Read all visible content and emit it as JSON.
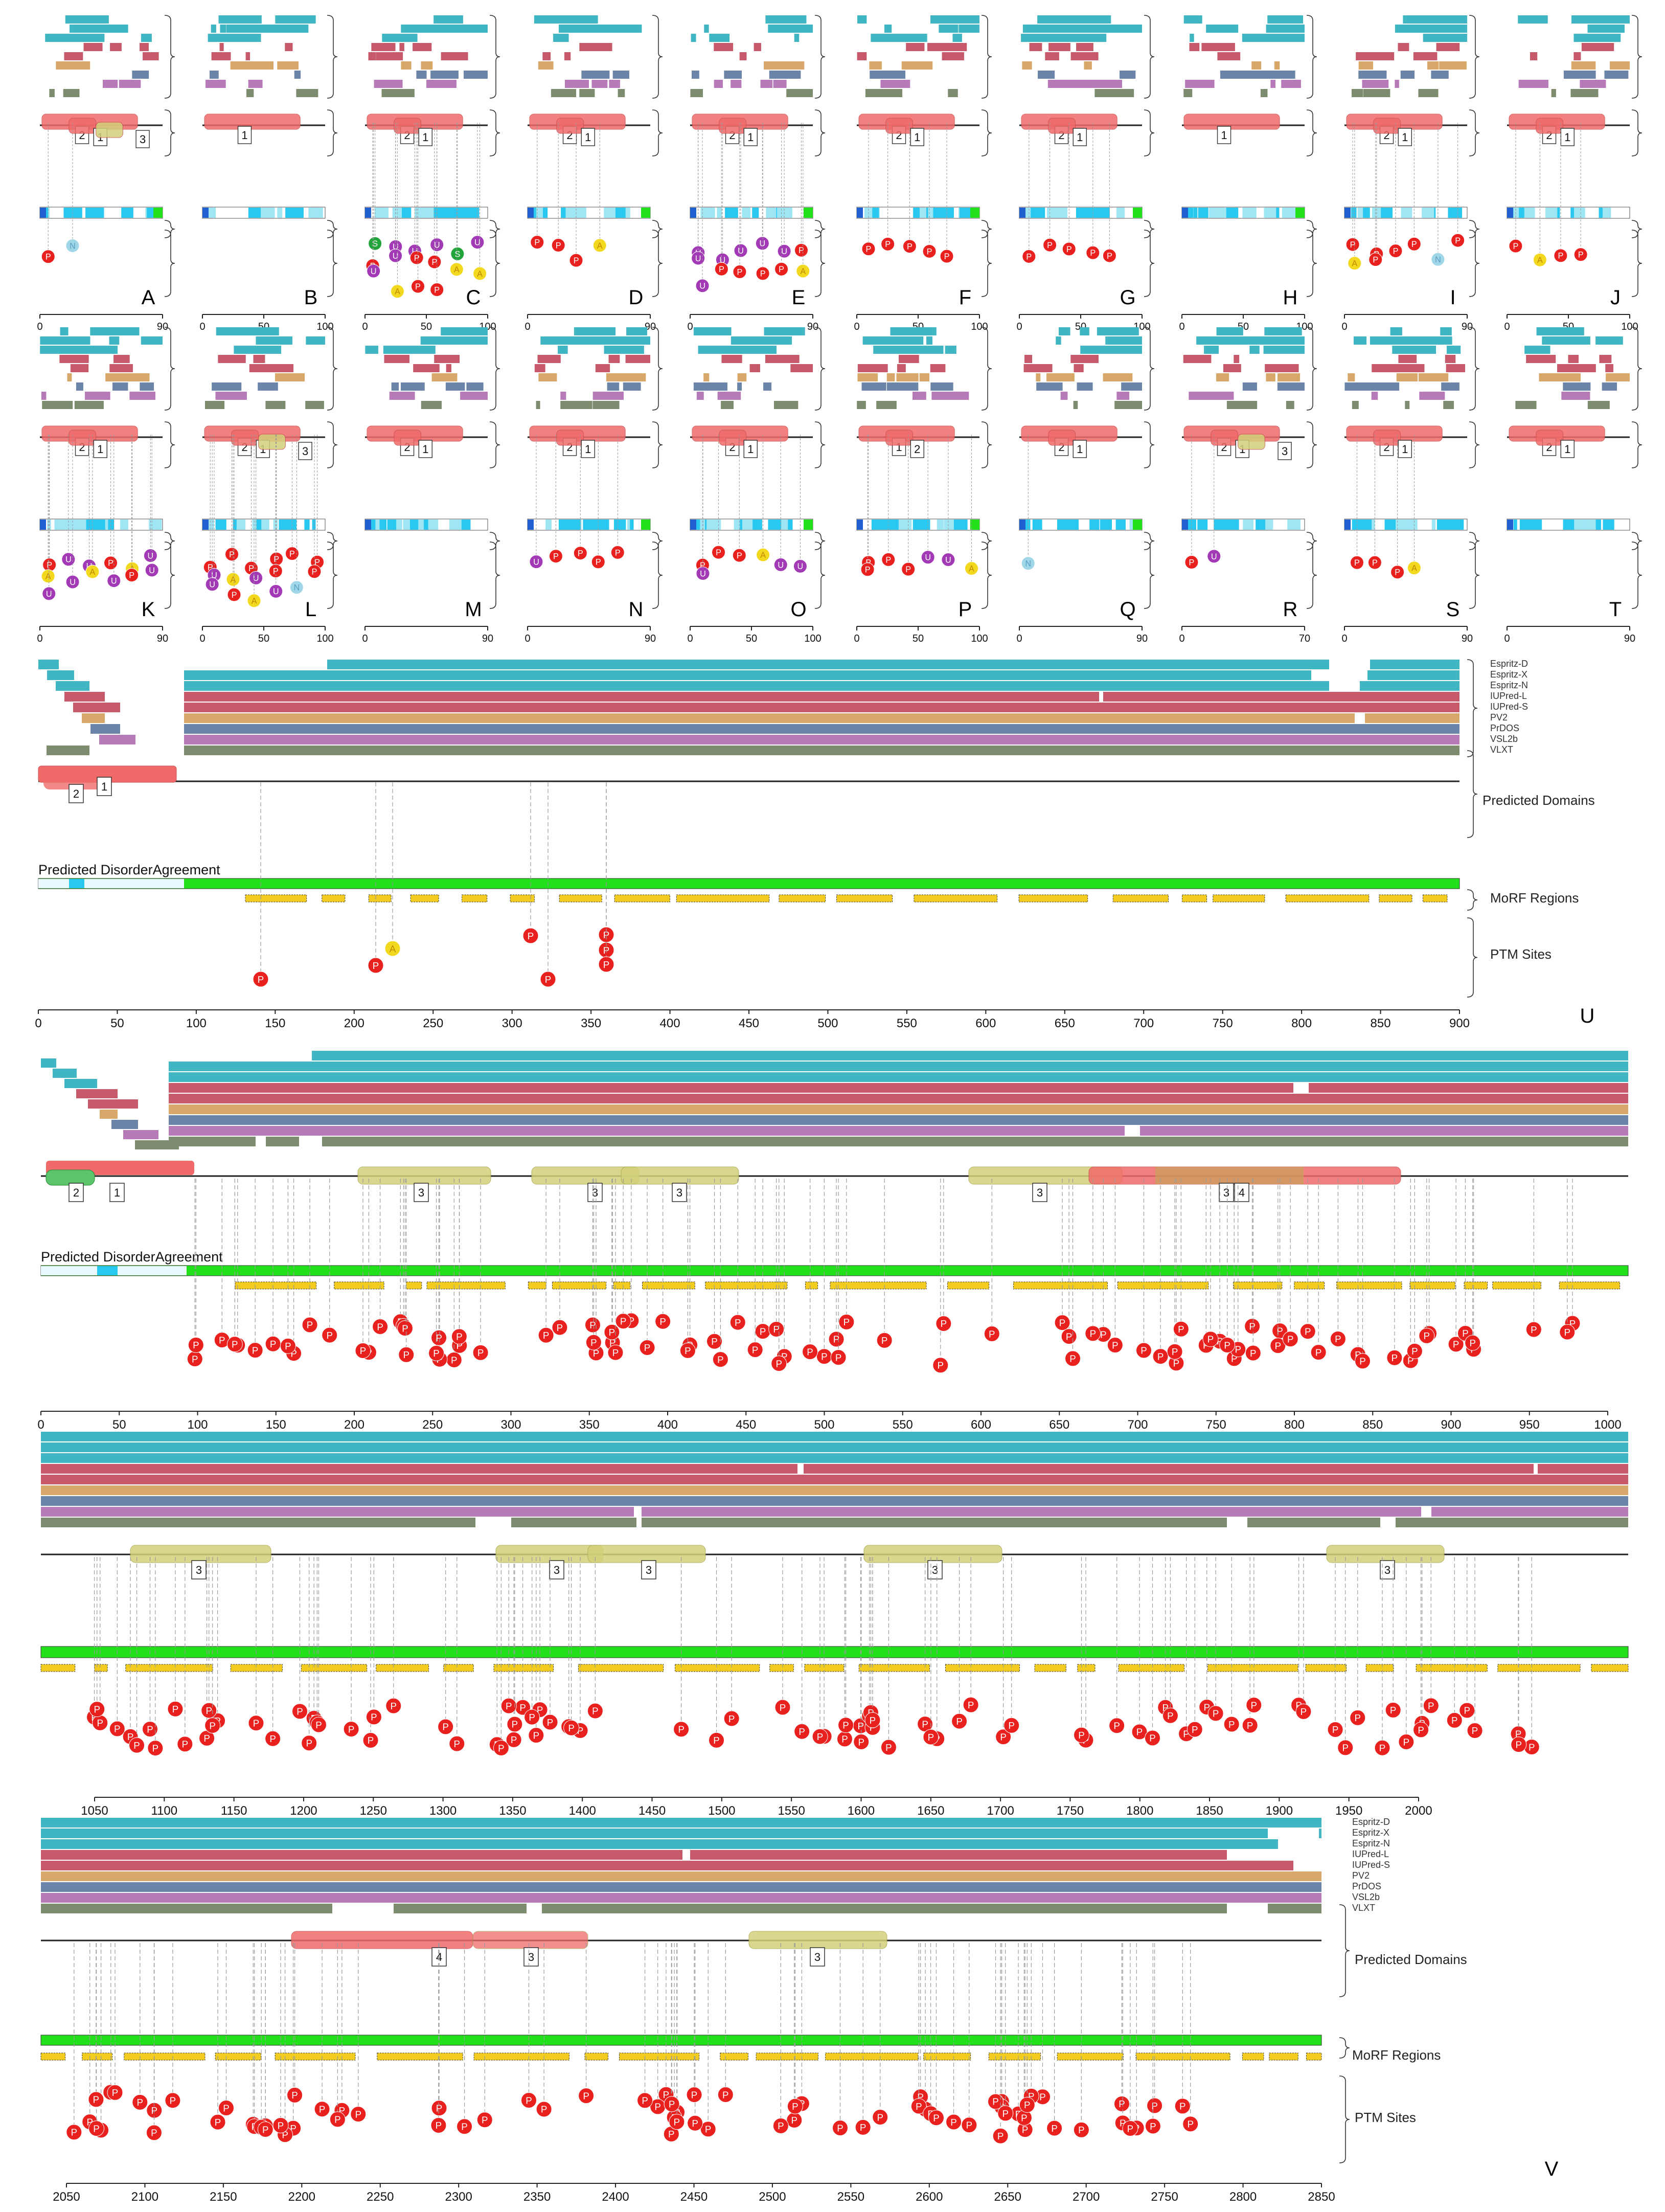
{
  "colors": {
    "espritz": "#3fb6c2",
    "espritz_light": "#7fd3dc",
    "iupred": "#c65a6b",
    "pv2": "#d8a86a",
    "prdos": "#6b84a8",
    "vsl2b": "#b67ab8",
    "vlxt": "#7d8b6e",
    "domain_red": "#f06a6a",
    "domain_yellow": "#d3d17a",
    "domain_green": "#5cc46a",
    "agreement_green": "#22e01a",
    "morf_yellow": "#f2cc1e",
    "ptm_p": "#e8201e",
    "ptm_u": "#a23ab6",
    "ptm_a": "#f2d81e",
    "ptm_s": "#23a43a",
    "ptm_n": "#9fd7e8",
    "axis": "#222222",
    "dash": "#9a9a9a"
  },
  "predictor_legend": [
    "Espritz-D",
    "Espritz-X",
    "Espritz-N",
    "IUPred-L",
    "IUPred-S",
    "PV2",
    "PrDOS",
    "VSL2b",
    "VLXT"
  ],
  "track_labels": {
    "predicted_domains": "Predicted Domains",
    "morf_regions": "MoRF Regions",
    "ptm_sites": "PTM Sites",
    "agreement": "Predicted DisorderAgreement"
  },
  "small_panels": [
    {
      "letter": "A",
      "ticks": [
        "0",
        "90"
      ],
      "domains": [
        "2",
        "1",
        "3"
      ],
      "ptms": [
        "P",
        "N"
      ]
    },
    {
      "letter": "B",
      "ticks": [
        "0",
        "50",
        "100"
      ],
      "domains": [
        "1"
      ],
      "ptms": []
    },
    {
      "letter": "C",
      "ticks": [
        "0",
        "50",
        "100"
      ],
      "domains": [
        "2",
        "1"
      ],
      "ptms": [
        "S",
        "U",
        "U",
        "U",
        "S",
        "U",
        "P",
        "U",
        "P",
        "P",
        "A",
        "A",
        "U",
        "A",
        "P",
        "P"
      ]
    },
    {
      "letter": "D",
      "ticks": [
        "0",
        "90"
      ],
      "domains": [
        "2",
        "1"
      ],
      "ptms": [
        "P",
        "P",
        "P",
        "A"
      ]
    },
    {
      "letter": "E",
      "ticks": [
        "0",
        "90"
      ],
      "domains": [
        "2",
        "1"
      ],
      "ptms": [
        "U",
        "U",
        "U",
        "U",
        "U",
        "P",
        "U",
        "P",
        "P",
        "P",
        "P",
        "A",
        "U"
      ]
    },
    {
      "letter": "F",
      "ticks": [
        "0",
        "50",
        "100"
      ],
      "domains": [
        "2",
        "1"
      ],
      "ptms": [
        "P",
        "P",
        "P",
        "P",
        "P"
      ]
    },
    {
      "letter": "G",
      "ticks": [
        "0",
        "50",
        "100"
      ],
      "domains": [
        "2",
        "1"
      ],
      "ptms": [
        "P",
        "P",
        "P",
        "P",
        "P"
      ]
    },
    {
      "letter": "H",
      "ticks": [
        "0",
        "50",
        "100"
      ],
      "domains": [
        "1"
      ],
      "ptms": []
    },
    {
      "letter": "I",
      "ticks": [
        "0",
        "90"
      ],
      "domains": [
        "2",
        "1"
      ],
      "ptms": [
        "P",
        "P",
        "P",
        "P",
        "N",
        "P",
        "A",
        "P"
      ]
    },
    {
      "letter": "J",
      "ticks": [
        "0",
        "50",
        "100"
      ],
      "domains": [
        "2",
        "1"
      ],
      "ptms": [
        "P",
        "A",
        "P",
        "P"
      ]
    },
    {
      "letter": "K",
      "ticks": [
        "0",
        "90"
      ],
      "domains": [
        "2",
        "1"
      ],
      "ptms": [
        "P",
        "U",
        "U",
        "P",
        "A",
        "U",
        "A",
        "U",
        "A",
        "U",
        "P",
        "U",
        "U"
      ]
    },
    {
      "letter": "L",
      "ticks": [
        "0",
        "50",
        "100"
      ],
      "domains": [
        "2",
        "1",
        "3"
      ],
      "ptms": [
        "P",
        "P",
        "P",
        "P",
        "P",
        "P",
        "U",
        "A",
        "U",
        "P",
        "N",
        "P",
        "U",
        "P",
        "A",
        "U"
      ]
    },
    {
      "letter": "M",
      "ticks": [
        "0",
        "90"
      ],
      "domains": [
        "2",
        "1"
      ],
      "ptms": []
    },
    {
      "letter": "N",
      "ticks": [
        "0",
        "90"
      ],
      "domains": [
        "2",
        "1"
      ],
      "ptms": [
        "U",
        "P",
        "P",
        "P",
        "P"
      ]
    },
    {
      "letter": "O",
      "ticks": [
        "0",
        "50",
        "100"
      ],
      "domains": [
        "2",
        "1"
      ],
      "ptms": [
        "P",
        "P",
        "P",
        "A",
        "U",
        "U",
        "U"
      ]
    },
    {
      "letter": "P",
      "ticks": [
        "0",
        "50",
        "100"
      ],
      "domains": [
        "1",
        "2"
      ],
      "ptms": [
        "P",
        "P",
        "P",
        "U",
        "U",
        "A",
        "P"
      ]
    },
    {
      "letter": "Q",
      "ticks": [
        "0",
        "90"
      ],
      "domains": [
        "2",
        "1"
      ],
      "ptms": [
        "N"
      ]
    },
    {
      "letter": "R",
      "ticks": [
        "0",
        "70"
      ],
      "domains": [
        "2",
        "1",
        "3"
      ],
      "ptms": [
        "P",
        "U"
      ]
    },
    {
      "letter": "S",
      "ticks": [
        "0",
        "90"
      ],
      "domains": [
        "2",
        "1"
      ],
      "ptms": [
        "P",
        "P",
        "P",
        "A"
      ]
    },
    {
      "letter": "T",
      "ticks": [
        "0",
        "90"
      ],
      "domains": [
        "2",
        "1"
      ],
      "ptms": []
    }
  ],
  "panel_u": {
    "letter": "U",
    "ticks": [
      "0",
      "50",
      "100",
      "150",
      "200",
      "250",
      "300",
      "350",
      "400",
      "450",
      "500",
      "550",
      "600",
      "650",
      "700",
      "750",
      "800",
      "850",
      "900"
    ],
    "domains": [
      "2",
      "1"
    ],
    "ptms": [
      "P",
      "P",
      "A",
      "P",
      "P",
      "P",
      "P",
      "P"
    ]
  },
  "panel_v": {
    "letter": "V",
    "row1_ticks": [
      "0",
      "50",
      "100",
      "150",
      "200",
      "250",
      "300",
      "350",
      "400",
      "450",
      "500",
      "550",
      "600",
      "650",
      "700",
      "750",
      "800",
      "850",
      "900",
      "950",
      "1000"
    ],
    "row2_ticks": [
      "1050",
      "1100",
      "1150",
      "1200",
      "1250",
      "1300",
      "1350",
      "1400",
      "1450",
      "1500",
      "1550",
      "1600",
      "1650",
      "1700",
      "1750",
      "1800",
      "1850",
      "1900",
      "1950",
      "2000"
    ],
    "row3_ticks": [
      "2050",
      "2100",
      "2150",
      "2200",
      "2250",
      "2300",
      "2350",
      "2400",
      "2450",
      "2500",
      "2550",
      "2600",
      "2650",
      "2700",
      "2750",
      "2800",
      "2850"
    ],
    "row1_domains": [
      "2",
      "1",
      "3",
      "3",
      "3",
      "3",
      "3",
      "4"
    ],
    "row2_domains": [
      "3",
      "3",
      "3",
      "3",
      "3"
    ],
    "row3_domains": [
      "4",
      "3",
      "3"
    ],
    "ptm_label": "P"
  }
}
